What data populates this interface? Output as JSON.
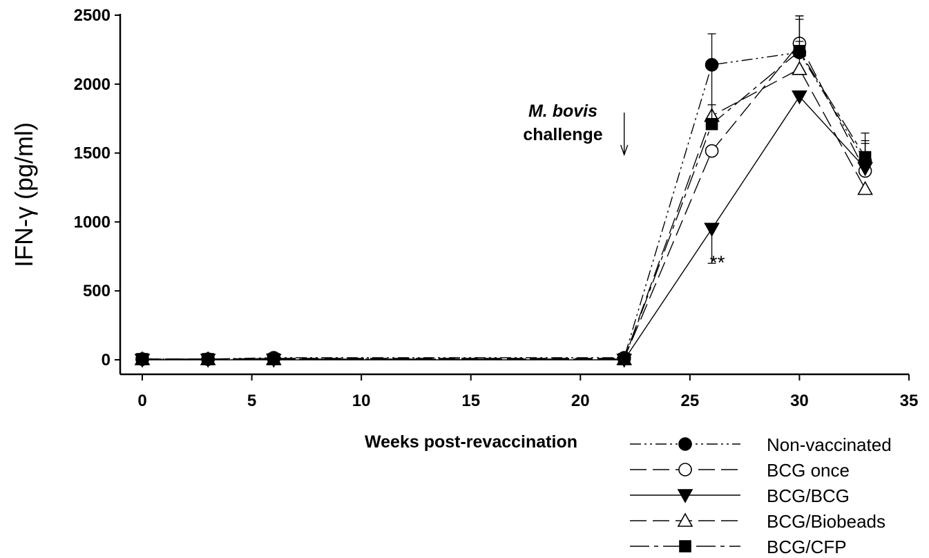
{
  "chart_data": {
    "type": "line",
    "xlabel": "Weeks post-revaccination",
    "ylabel": "IFN-γ (pg/ml)",
    "xlim": [
      -1,
      35
    ],
    "ylim": [
      -100,
      2500
    ],
    "xticks": [
      0,
      5,
      10,
      15,
      20,
      25,
      30,
      35
    ],
    "yticks": [
      0,
      500,
      1000,
      1500,
      2000,
      2500
    ],
    "x": [
      0,
      3,
      6,
      22,
      26,
      30,
      33
    ],
    "grid": false,
    "legend_position": "bottom-right",
    "series": [
      {
        "name": "Non-vaccinated",
        "marker": "filled-circle",
        "dash": "dash-dot-dot",
        "values": [
          5,
          5,
          15,
          15,
          2140,
          2230,
          1440
        ],
        "error": [
          0,
          0,
          0,
          0,
          225,
          265,
          150
        ]
      },
      {
        "name": "BCG once",
        "marker": "open-circle",
        "dash": "long-dash",
        "values": [
          5,
          5,
          10,
          10,
          1515,
          2295,
          1370
        ],
        "error": [
          0,
          0,
          0,
          0,
          0,
          200,
          200
        ]
      },
      {
        "name": "BCG/BCG",
        "marker": "filled-triangle-down",
        "dash": "solid",
        "values": [
          0,
          0,
          0,
          0,
          950,
          1910,
          1390
        ],
        "error": [
          0,
          0,
          0,
          0,
          250,
          0,
          0
        ]
      },
      {
        "name": "BCG/Biobeads",
        "marker": "open-triangle-up",
        "dash": "long-dash",
        "values": [
          5,
          5,
          5,
          5,
          1770,
          2110,
          1240
        ],
        "error": [
          0,
          0,
          0,
          0,
          400,
          200,
          0
        ]
      },
      {
        "name": "BCG/CFP",
        "marker": "filled-square",
        "dash": "long-dash-short",
        "values": [
          5,
          5,
          5,
          5,
          1710,
          2240,
          1470
        ],
        "error": [
          0,
          0,
          0,
          0,
          140,
          230,
          175
        ]
      }
    ],
    "annotations": {
      "challenge_line1": "M. bovis",
      "challenge_line2": "challenge",
      "challenge_x": 22,
      "significance": "**",
      "significance_x": 26,
      "significance_y": 770
    }
  }
}
